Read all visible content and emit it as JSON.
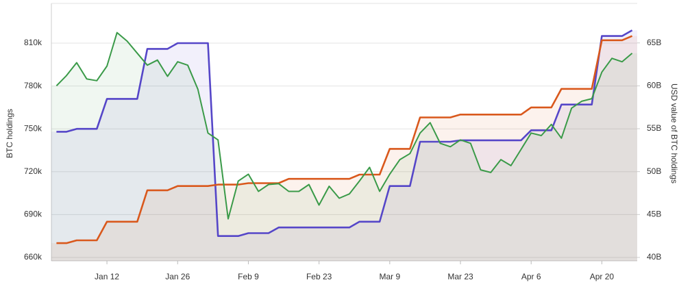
{
  "chart_data": {
    "type": "line",
    "ylabel": "BTC holdings",
    "y2label": "USD value of BTC holdings",
    "categories": [
      null,
      null,
      null,
      null,
      null,
      "Jan 12",
      null,
      null,
      null,
      null,
      null,
      null,
      "Jan 26",
      null,
      null,
      null,
      null,
      null,
      null,
      "Feb 9",
      null,
      null,
      null,
      null,
      null,
      null,
      "Feb 23",
      null,
      null,
      null,
      null,
      null,
      null,
      "Mar 9",
      null,
      null,
      null,
      null,
      null,
      null,
      "Mar 23",
      null,
      null,
      null,
      null,
      null,
      null,
      "Apr 6",
      null,
      null,
      null,
      null,
      null,
      null,
      "Apr 20",
      null,
      null,
      null
    ],
    "series": [
      {
        "color": "#5546c8",
        "values": [
          748,
          748,
          750,
          750,
          750,
          771,
          771,
          771,
          771,
          806,
          806,
          806,
          810,
          810,
          810,
          810,
          675,
          675,
          675,
          677,
          677,
          677,
          681,
          681,
          681,
          681,
          681,
          681,
          681,
          681,
          685,
          685,
          685,
          710,
          710,
          710,
          741,
          741,
          741,
          741,
          742,
          742,
          742,
          742,
          742,
          742,
          742,
          749,
          749,
          749,
          767,
          767,
          767,
          767,
          815,
          815,
          815,
          819
        ]
      },
      {
        "color": "#d9581c",
        "values": [
          670,
          670,
          672,
          672,
          672,
          685,
          685,
          685,
          685,
          707,
          707,
          707,
          710,
          710,
          710,
          710,
          711,
          711,
          711,
          712,
          712,
          712,
          712,
          715,
          715,
          715,
          715,
          715,
          715,
          715,
          718,
          718,
          718,
          736,
          736,
          736,
          758,
          758,
          758,
          758,
          760,
          760,
          760,
          760,
          760,
          760,
          760,
          765,
          765,
          765,
          778,
          778,
          778,
          778,
          812,
          812,
          812,
          815
        ]
      },
      {
        "color": "#3a9a48",
        "axis": "y2",
        "values": [
          60.0,
          61.2,
          62.7,
          60.8,
          60.6,
          62.3,
          66.2,
          65.2,
          63.8,
          62.4,
          63.0,
          61.1,
          62.8,
          62.4,
          59.6,
          54.5,
          53.7,
          44.5,
          48.9,
          49.7,
          47.7,
          48.5,
          48.6,
          47.7,
          47.7,
          48.5,
          46.1,
          48.3,
          46.9,
          47.4,
          48.9,
          50.5,
          47.7,
          49.7,
          51.4,
          52.1,
          54.5,
          55.7,
          53.3,
          52.9,
          53.7,
          53.3,
          50.2,
          49.9,
          51.4,
          50.7,
          52.6,
          54.5,
          54.2,
          55.5,
          53.9,
          57.4,
          58.2,
          58.5,
          61.6,
          63.2,
          62.8,
          63.8
        ]
      }
    ],
    "ylim": [
      657.6,
      837.8
    ],
    "yticks": [
      {
        "value": 660,
        "label": "660k"
      },
      {
        "value": 690,
        "label": "690k"
      },
      {
        "value": 720,
        "label": "720k"
      },
      {
        "value": 750,
        "label": "750k"
      },
      {
        "value": 780,
        "label": "780k"
      },
      {
        "value": 810,
        "label": "810k"
      }
    ],
    "y2lim": [
      39.6,
      69.6
    ],
    "y2ticks": [
      {
        "value": 40,
        "label": "40B"
      },
      {
        "value": 45,
        "label": "45B"
      },
      {
        "value": 50,
        "label": "50B"
      },
      {
        "value": 55,
        "label": "55B"
      },
      {
        "value": 60,
        "label": "60B"
      },
      {
        "value": 65,
        "label": "65B"
      }
    ],
    "grid": true
  }
}
